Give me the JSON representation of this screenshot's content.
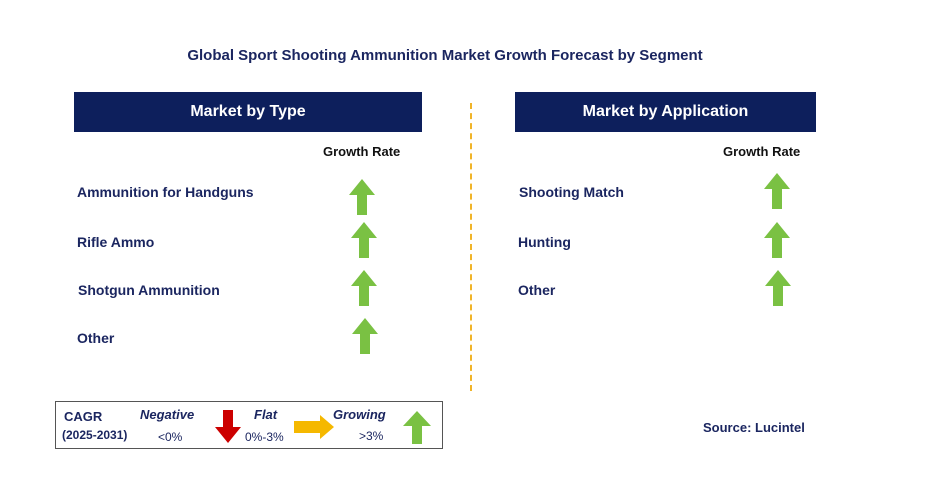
{
  "title": "Global Sport Shooting Ammunition Market Growth Forecast by Segment",
  "type_panel": {
    "header": "Market by Type",
    "growth_label": "Growth Rate",
    "items": [
      {
        "label": "Ammunition for Handguns",
        "trend": "growing"
      },
      {
        "label": "Rifle Ammo",
        "trend": "growing"
      },
      {
        "label": "Shotgun Ammunition",
        "trend": "growing"
      },
      {
        "label": "Other",
        "trend": "growing"
      }
    ]
  },
  "application_panel": {
    "header": "Market by Application",
    "growth_label": "Growth Rate",
    "items": [
      {
        "label": "Shooting Match",
        "trend": "growing"
      },
      {
        "label": "Hunting",
        "trend": "growing"
      },
      {
        "label": "Other",
        "trend": "growing"
      }
    ]
  },
  "legend": {
    "cagr_label": "CAGR",
    "period": "(2025-2031)",
    "negative_label": "Negative",
    "negative_range": "<0%",
    "flat_label": "Flat",
    "flat_range": "0%-3%",
    "growing_label": "Growing",
    "growing_range": ">3%"
  },
  "source": "Source: Lucintel",
  "colors": {
    "header_bg": "#0d1f5c",
    "growing": "#7ac143",
    "negative": "#cc0000",
    "flat": "#f5b800",
    "divider": "#f0b429"
  }
}
